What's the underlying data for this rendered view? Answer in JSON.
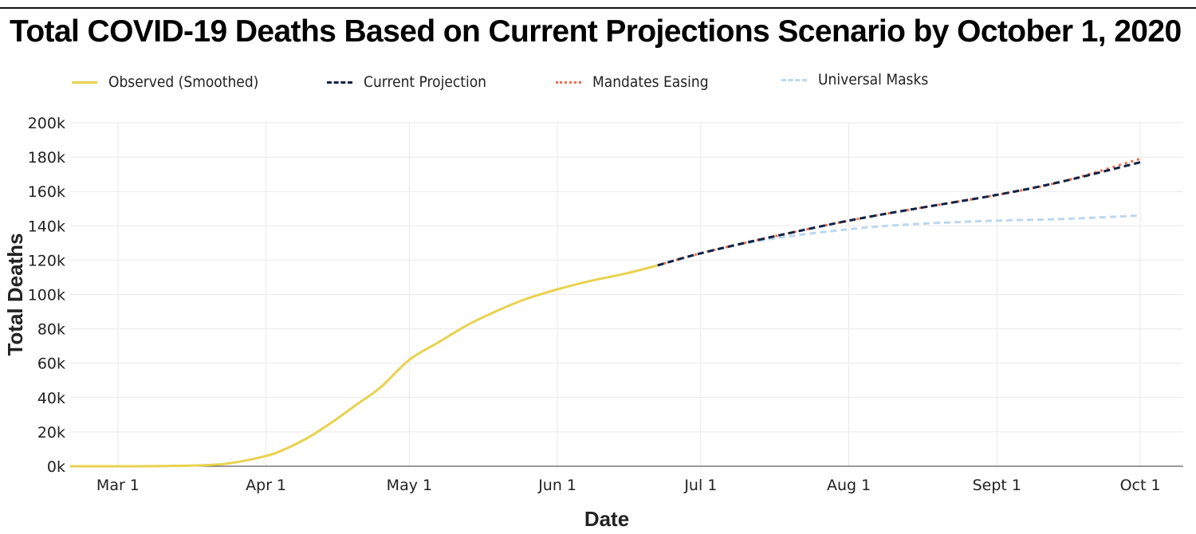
{
  "title": "Total COVID-19 Deaths Based on Current Projections Scenario by October 1, 2020",
  "legend": [
    {
      "label": "Observed (Smoothed)",
      "color": "#e8d24e",
      "style": "solid"
    },
    {
      "label": "Current Projection",
      "color": "#0d2345",
      "style": "dashed"
    },
    {
      "label": "Mandates Easing",
      "color": "#f26b4c",
      "style": "dotted"
    },
    {
      "label": "Universal Masks",
      "color": "#bcd7ef",
      "style": "dashed"
    }
  ],
  "chart_data": {
    "type": "line",
    "title": "Total COVID-19 Deaths Based on Current Projections Scenario by October 1, 2020",
    "xlabel": "Date",
    "ylabel": "Total Deaths",
    "xlim": [
      "2020-02-20",
      "2020-10-10"
    ],
    "ylim": [
      0,
      200000
    ],
    "x_ticks": [
      {
        "date": "2020-03-01",
        "label": "Mar 1"
      },
      {
        "date": "2020-04-01",
        "label": "Apr 1"
      },
      {
        "date": "2020-05-01",
        "label": "May 1"
      },
      {
        "date": "2020-06-01",
        "label": "Jun 1"
      },
      {
        "date": "2020-07-01",
        "label": "Jul 1"
      },
      {
        "date": "2020-08-01",
        "label": "Aug 1"
      },
      {
        "date": "2020-09-01",
        "label": "Sept 1"
      },
      {
        "date": "2020-10-01",
        "label": "Oct 1"
      }
    ],
    "y_ticks": [
      {
        "value": 0,
        "label": "0k"
      },
      {
        "value": 20000,
        "label": "20k"
      },
      {
        "value": 40000,
        "label": "40k"
      },
      {
        "value": 60000,
        "label": "60k"
      },
      {
        "value": 80000,
        "label": "80k"
      },
      {
        "value": 100000,
        "label": "100k"
      },
      {
        "value": 120000,
        "label": "120k"
      },
      {
        "value": 140000,
        "label": "140k"
      },
      {
        "value": 160000,
        "label": "160k"
      },
      {
        "value": 180000,
        "label": "180k"
      },
      {
        "value": 200000,
        "label": "200k"
      }
    ],
    "grid": true,
    "legend_position": "top",
    "series": [
      {
        "name": "Observed (Smoothed)",
        "color": "#e8d24e",
        "style": "solid",
        "points": [
          [
            "2020-02-20",
            0
          ],
          [
            "2020-03-01",
            0
          ],
          [
            "2020-03-10",
            100
          ],
          [
            "2020-03-20",
            700
          ],
          [
            "2020-03-25",
            2000
          ],
          [
            "2020-04-01",
            6000
          ],
          [
            "2020-04-05",
            10000
          ],
          [
            "2020-04-10",
            17000
          ],
          [
            "2020-04-15",
            26000
          ],
          [
            "2020-04-20",
            36000
          ],
          [
            "2020-04-25",
            46000
          ],
          [
            "2020-05-01",
            62000
          ],
          [
            "2020-05-07",
            72000
          ],
          [
            "2020-05-13",
            82000
          ],
          [
            "2020-05-19",
            90000
          ],
          [
            "2020-05-25",
            97000
          ],
          [
            "2020-06-01",
            103000
          ],
          [
            "2020-06-08",
            108000
          ],
          [
            "2020-06-15",
            112000
          ],
          [
            "2020-06-22",
            117000
          ]
        ]
      },
      {
        "name": "Mandates Easing",
        "color": "#f26b4c",
        "style": "dotted",
        "points": [
          [
            "2020-06-22",
            117000
          ],
          [
            "2020-07-01",
            124000
          ],
          [
            "2020-07-15",
            133000
          ],
          [
            "2020-08-01",
            143000
          ],
          [
            "2020-08-15",
            150000
          ],
          [
            "2020-09-01",
            158000
          ],
          [
            "2020-09-15",
            166000
          ],
          [
            "2020-10-01",
            179000
          ]
        ]
      },
      {
        "name": "Universal Masks",
        "color": "#bcd7ef",
        "style": "dashed",
        "points": [
          [
            "2020-06-22",
            117000
          ],
          [
            "2020-07-01",
            124000
          ],
          [
            "2020-07-15",
            132000
          ],
          [
            "2020-08-01",
            138000
          ],
          [
            "2020-08-15",
            141000
          ],
          [
            "2020-09-01",
            143000
          ],
          [
            "2020-09-15",
            144000
          ],
          [
            "2020-10-01",
            146000
          ]
        ]
      },
      {
        "name": "Current Projection",
        "color": "#0d2345",
        "style": "dashed",
        "points": [
          [
            "2020-06-22",
            117000
          ],
          [
            "2020-07-01",
            124000
          ],
          [
            "2020-07-15",
            133000
          ],
          [
            "2020-08-01",
            143000
          ],
          [
            "2020-08-15",
            150000
          ],
          [
            "2020-09-01",
            158000
          ],
          [
            "2020-09-15",
            166000
          ],
          [
            "2020-10-01",
            177000
          ]
        ]
      }
    ]
  }
}
